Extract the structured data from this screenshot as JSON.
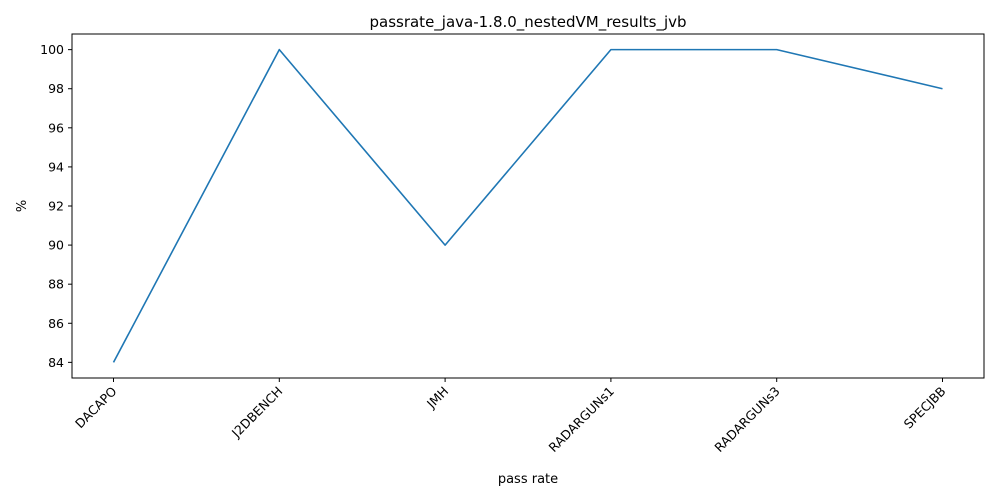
{
  "chart_data": {
    "type": "line",
    "title": "passrate_java-1.8.0_nestedVM_results_jvb",
    "xlabel": "pass rate",
    "ylabel": "%",
    "categories": [
      "DACAPO",
      "J2DBENCH",
      "JMH",
      "RADARGUNs1",
      "RADARGUNs3",
      "SPECJBB"
    ],
    "series": [
      {
        "values": [
          84,
          100,
          90,
          100,
          100,
          98
        ],
        "color": "#1f77b4"
      }
    ],
    "ylim": [
      83.2,
      100.8
    ],
    "yticks": [
      84,
      86,
      88,
      90,
      92,
      94,
      96,
      98,
      100
    ],
    "grid": false,
    "legend": "none"
  }
}
